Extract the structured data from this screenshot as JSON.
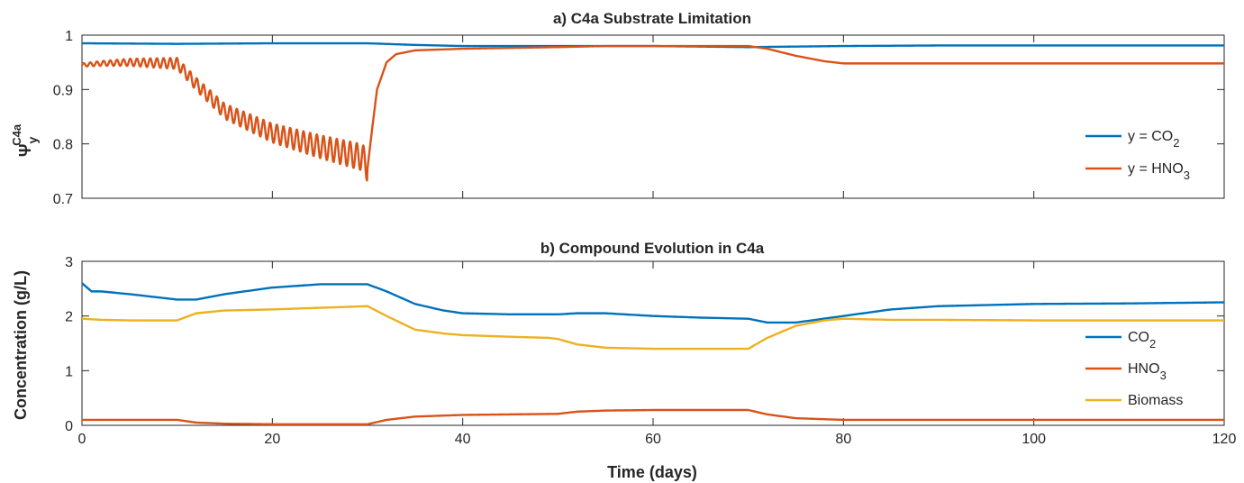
{
  "chart_data": [
    {
      "type": "line",
      "title": "a) C4a Substrate Limitation",
      "xlabel": "",
      "ylabel": {
        "main": "Ψ",
        "super": "C4a",
        "sub": "y"
      },
      "xlim": [
        0,
        120
      ],
      "ylim": [
        0.7,
        1.0
      ],
      "xticks": [
        0,
        20,
        40,
        60,
        80,
        100,
        120
      ],
      "yticks": [
        0.7,
        0.8,
        0.9,
        1.0
      ],
      "yticklabels": [
        "0.7",
        "0.8",
        "0.9",
        "1"
      ],
      "xticklabels": [
        "",
        "",
        "",
        "",
        "",
        "",
        ""
      ],
      "grid": false,
      "legend_position": "right",
      "series": [
        {
          "name": "y = CO2",
          "label_main": "y = CO",
          "label_sub": "2",
          "label_tail": "",
          "color": "#0072BD",
          "x": [
            0,
            10,
            20,
            30,
            35,
            40,
            50,
            60,
            70,
            75,
            80,
            90,
            100,
            110,
            120
          ],
          "y": [
            0.985,
            0.984,
            0.985,
            0.985,
            0.982,
            0.98,
            0.98,
            0.98,
            0.978,
            0.979,
            0.98,
            0.981,
            0.981,
            0.981,
            0.981
          ]
        },
        {
          "name": "y = HNO3",
          "label_main": "y = HNO",
          "label_sub": "3",
          "label_tail": "",
          "color": "#D95319",
          "oscillation": {
            "from": 0,
            "to": 30,
            "period": 0.7,
            "amp_start": 0.003,
            "amp_end": 0.025
          },
          "x": [
            0,
            2,
            5,
            10,
            12,
            15,
            20,
            25,
            29.5,
            30,
            30.5,
            31,
            32,
            33,
            35,
            40,
            50,
            55,
            60,
            70,
            72,
            75,
            78,
            80,
            90,
            100,
            110,
            120
          ],
          "y": [
            0.945,
            0.948,
            0.95,
            0.948,
            0.91,
            0.86,
            0.82,
            0.795,
            0.775,
            0.755,
            0.83,
            0.9,
            0.95,
            0.965,
            0.972,
            0.975,
            0.978,
            0.98,
            0.98,
            0.98,
            0.975,
            0.962,
            0.952,
            0.948,
            0.948,
            0.948,
            0.948,
            0.948
          ]
        }
      ]
    },
    {
      "type": "line",
      "title": "b) Compound Evolution in C4a",
      "xlabel": "Time (days)",
      "ylabel": "Concentration (g/L)",
      "xlim": [
        0,
        120
      ],
      "ylim": [
        0,
        3
      ],
      "xticks": [
        0,
        20,
        40,
        60,
        80,
        100,
        120
      ],
      "xticklabels": [
        "0",
        "20",
        "40",
        "60",
        "80",
        "100",
        "120"
      ],
      "yticks": [
        0,
        1,
        2,
        3
      ],
      "yticklabels": [
        "0",
        "1",
        "2",
        "3"
      ],
      "grid": false,
      "legend_position": "right",
      "series": [
        {
          "name": "CO2",
          "label_main": "CO",
          "label_sub": "2",
          "label_tail": "",
          "color": "#0072BD",
          "x": [
            0,
            1,
            2,
            5,
            10,
            12,
            15,
            20,
            25,
            30,
            32,
            35,
            38,
            40,
            45,
            50,
            52,
            55,
            60,
            65,
            70,
            72,
            75,
            80,
            85,
            90,
            100,
            110,
            120
          ],
          "y": [
            2.6,
            2.45,
            2.45,
            2.4,
            2.3,
            2.3,
            2.4,
            2.52,
            2.58,
            2.58,
            2.45,
            2.22,
            2.1,
            2.05,
            2.03,
            2.03,
            2.05,
            2.05,
            2.0,
            1.97,
            1.95,
            1.88,
            1.88,
            2.0,
            2.12,
            2.18,
            2.22,
            2.23,
            2.25
          ]
        },
        {
          "name": "HNO3",
          "label_main": "HNO",
          "label_sub": "3",
          "label_tail": "",
          "color": "#D95319",
          "x": [
            0,
            5,
            10,
            12,
            15,
            20,
            25,
            30,
            32,
            35,
            40,
            45,
            50,
            52,
            55,
            60,
            65,
            70,
            72,
            75,
            80,
            90,
            100,
            110,
            120
          ],
          "y": [
            0.1,
            0.1,
            0.1,
            0.05,
            0.03,
            0.02,
            0.02,
            0.02,
            0.1,
            0.16,
            0.19,
            0.2,
            0.21,
            0.25,
            0.27,
            0.28,
            0.28,
            0.28,
            0.2,
            0.13,
            0.1,
            0.1,
            0.1,
            0.1,
            0.1
          ]
        },
        {
          "name": "Biomass",
          "label_main": "Biomass",
          "label_sub": "",
          "label_tail": "",
          "color": "#EDB120",
          "x": [
            0,
            2,
            5,
            10,
            12,
            15,
            20,
            25,
            30,
            32,
            35,
            38,
            40,
            45,
            49,
            50,
            52,
            55,
            60,
            65,
            70,
            72,
            75,
            78,
            80,
            85,
            90,
            100,
            110,
            120
          ],
          "y": [
            1.95,
            1.93,
            1.92,
            1.92,
            2.05,
            2.1,
            2.12,
            2.15,
            2.18,
            2.0,
            1.75,
            1.68,
            1.65,
            1.62,
            1.6,
            1.58,
            1.48,
            1.42,
            1.4,
            1.4,
            1.4,
            1.6,
            1.82,
            1.92,
            1.95,
            1.93,
            1.93,
            1.92,
            1.92,
            1.92
          ]
        }
      ]
    }
  ]
}
